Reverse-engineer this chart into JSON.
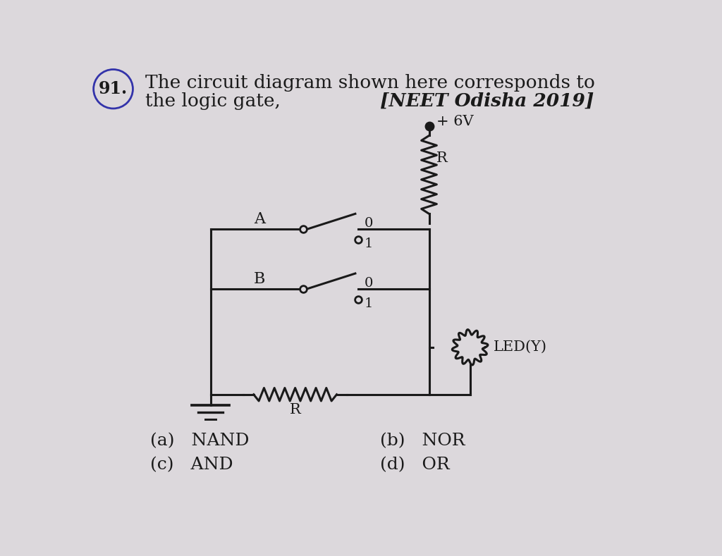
{
  "title_line1": "The circuit diagram shown here corresponds to",
  "title_line2": "the logic gate,",
  "title_reference": "[NEET Odisha 2019]",
  "question_number": "91.",
  "bg_color": "#dcd8dc",
  "text_color": "#1a1a1a",
  "options_a": "(a)   NAND",
  "options_b": "(b)   NOR",
  "options_c": "(c)   AND",
  "options_d": "(d)   OR",
  "plus6v_label": "+ 6V",
  "resistor_top_label": "R",
  "resistor_bottom_label": "R",
  "led_label": "LED(Y)",
  "switch_A_label": "A",
  "switch_B_label": "B",
  "switch_0": "0",
  "switch_1": "1"
}
